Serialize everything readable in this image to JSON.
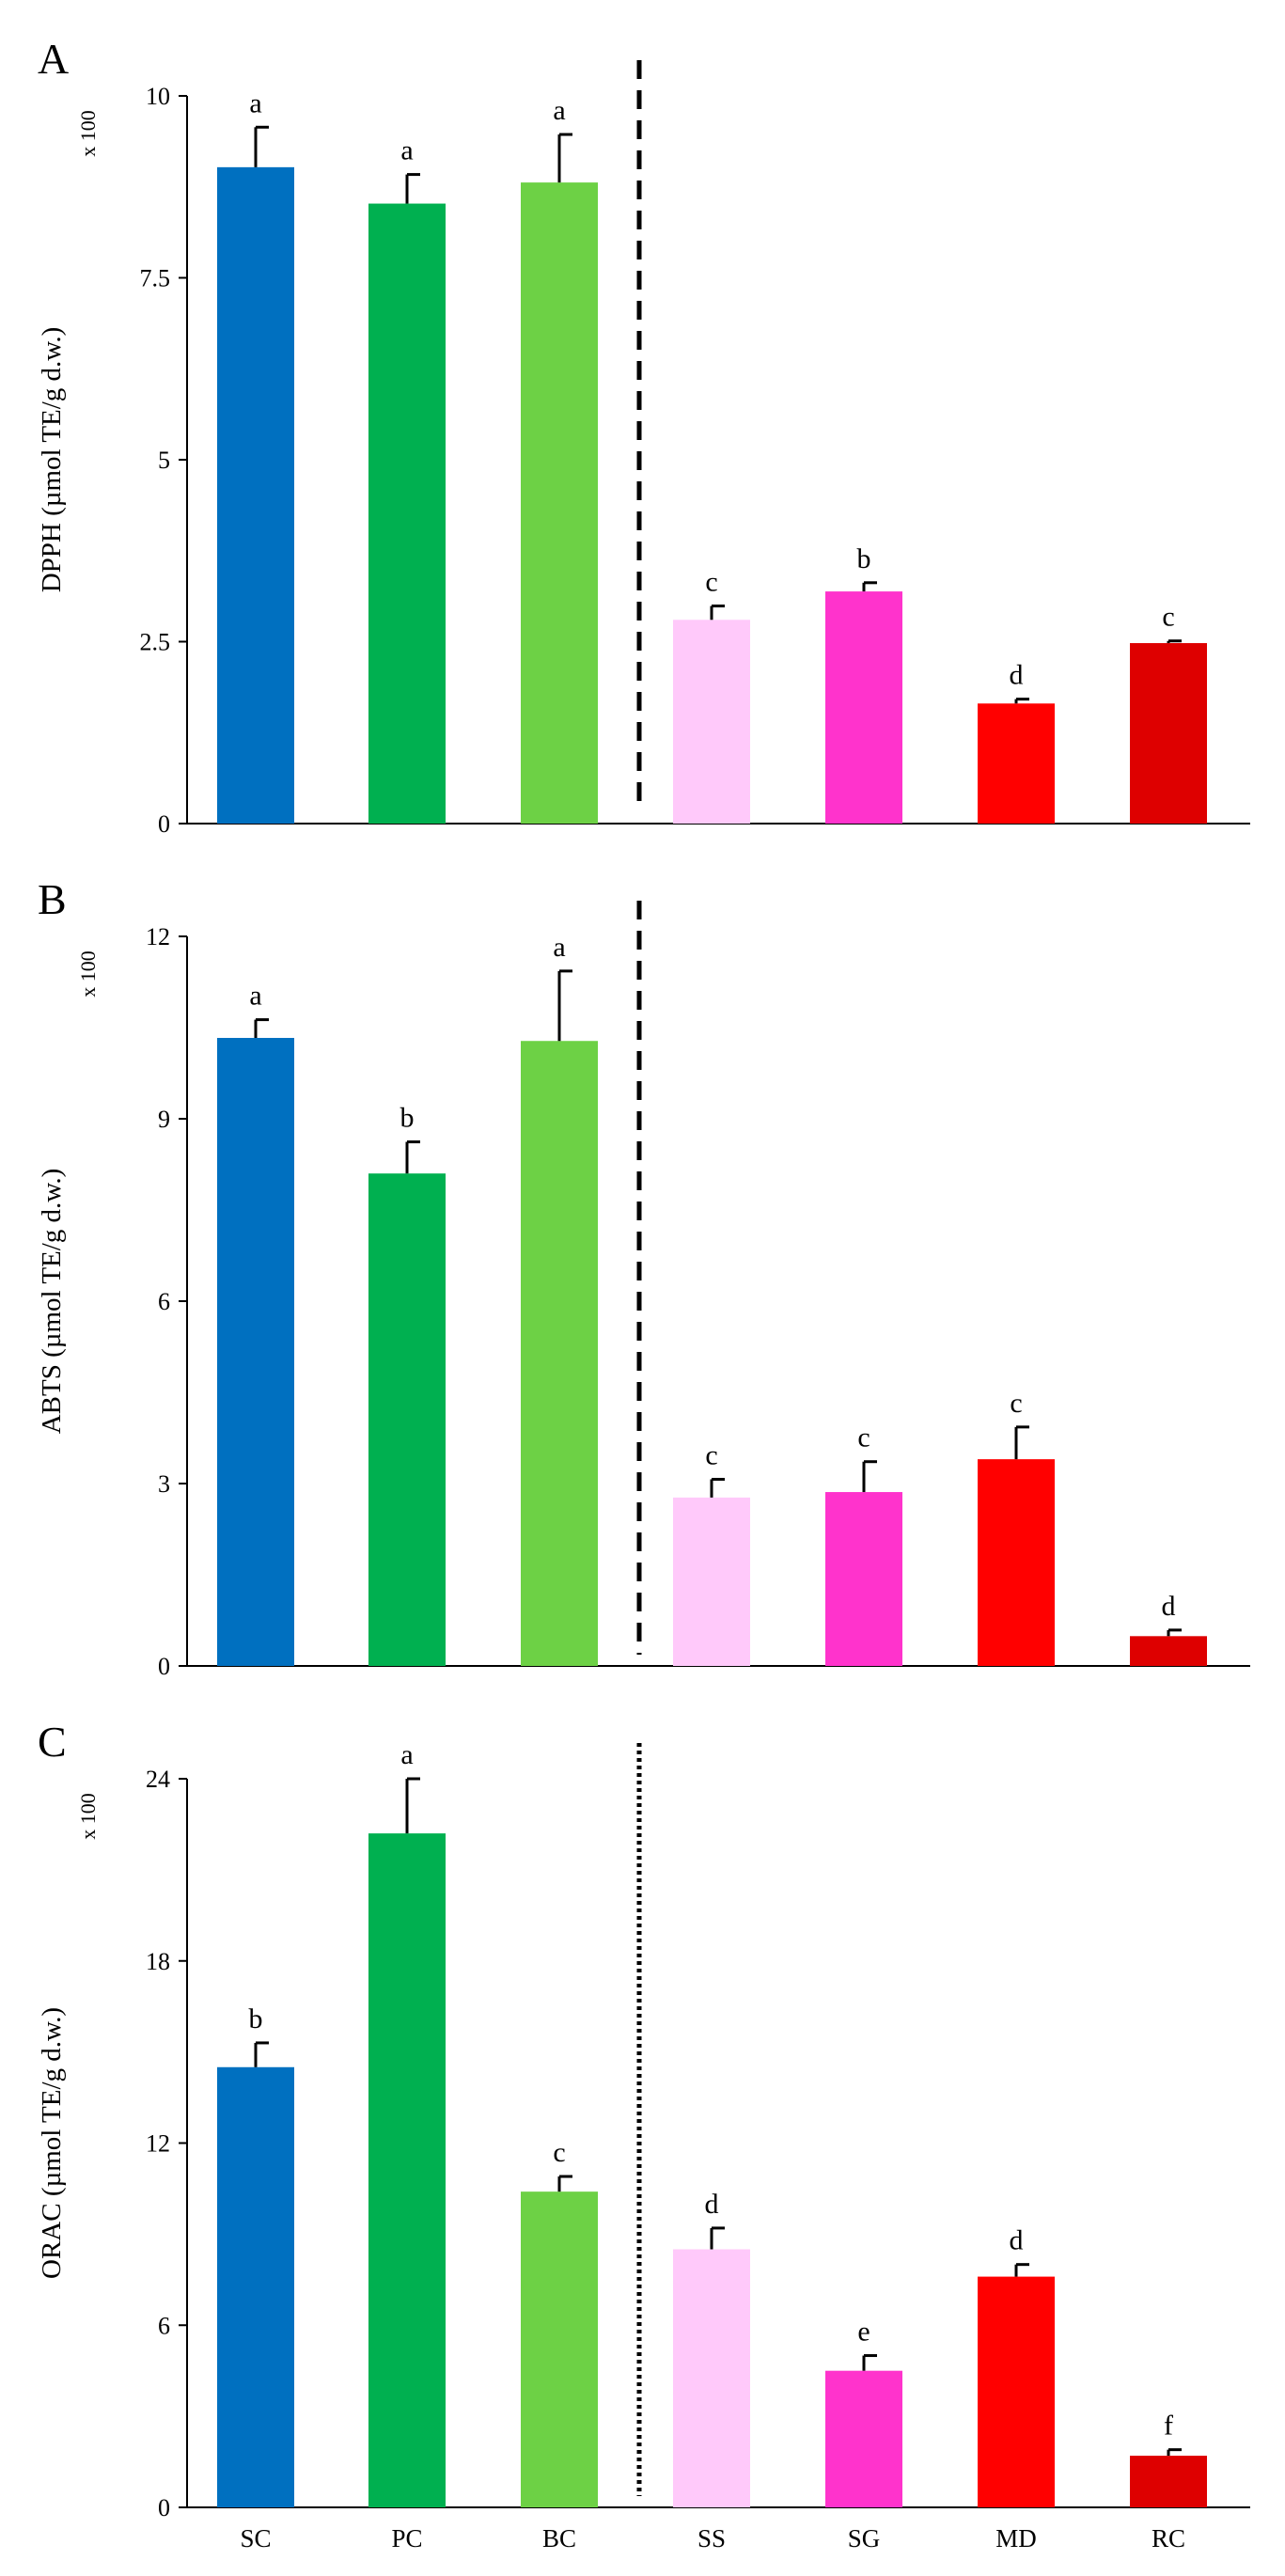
{
  "chart_data": [
    {
      "type": "bar",
      "panel_label": "A",
      "title": "",
      "ylabel": "DPPH (µmol TE/g d.w.)",
      "multiplier": "x 100",
      "ylim": [
        0,
        10
      ],
      "yticks": [
        0,
        2.5,
        5,
        7.5,
        10
      ],
      "ytick_labels": [
        "0",
        "2.5",
        "5",
        "7.5",
        "10"
      ],
      "categories": [
        "SC",
        "PC",
        "BC",
        "SS",
        "SG",
        "MD",
        "RC"
      ],
      "values": [
        9.02,
        8.52,
        8.81,
        2.8,
        3.19,
        1.65,
        2.48
      ],
      "errors": [
        0.55,
        0.4,
        0.66,
        0.19,
        0.12,
        0.06,
        0.03
      ],
      "letters": [
        "a",
        "a",
        "a",
        "c",
        "b",
        "d",
        "c"
      ],
      "colors": [
        "#0070C0",
        "#00B050",
        "#6DD145",
        "#FFC9FA",
        "#FF33CC",
        "#FF0000",
        "#DE0000"
      ],
      "separator_style": "dashed"
    },
    {
      "type": "bar",
      "panel_label": "B",
      "title": "",
      "ylabel": "ABTS (µmol TE/g d.w.)",
      "multiplier": "x 100",
      "ylim": [
        0,
        12
      ],
      "yticks": [
        0,
        3,
        6,
        9,
        12
      ],
      "ytick_labels": [
        "0",
        "3",
        "6",
        "9",
        "12"
      ],
      "categories": [
        "SC",
        "PC",
        "BC",
        "SS",
        "SG",
        "MD",
        "RC"
      ],
      "values": [
        10.33,
        8.1,
        10.28,
        2.77,
        2.86,
        3.4,
        0.49
      ],
      "errors": [
        0.3,
        0.52,
        1.15,
        0.3,
        0.5,
        0.53,
        0.1
      ],
      "letters": [
        "a",
        "b",
        "a",
        "c",
        "c",
        "c",
        "d"
      ],
      "colors": [
        "#0070C0",
        "#00B050",
        "#6DD145",
        "#FFC9FA",
        "#FF33CC",
        "#FF0000",
        "#DE0000"
      ],
      "separator_style": "dashed"
    },
    {
      "type": "bar",
      "panel_label": "C",
      "title": "",
      "ylabel": "ORAC (µmol TE/g d.w.)",
      "multiplier": "x 100",
      "ylim": [
        0,
        24
      ],
      "yticks": [
        0,
        6,
        12,
        18,
        24
      ],
      "ytick_labels": [
        "0",
        "6",
        "12",
        "18",
        "24"
      ],
      "categories": [
        "SC",
        "PC",
        "BC",
        "SS",
        "SG",
        "MD",
        "RC"
      ],
      "values": [
        14.5,
        22.2,
        10.4,
        8.5,
        4.5,
        7.6,
        1.7
      ],
      "errors": [
        0.8,
        1.8,
        0.5,
        0.7,
        0.5,
        0.4,
        0.2
      ],
      "letters": [
        "b",
        "a",
        "c",
        "d",
        "e",
        "d",
        "f"
      ],
      "colors": [
        "#0070C0",
        "#00B050",
        "#6DD145",
        "#FFC9FA",
        "#FF33CC",
        "#FF0000",
        "#DE0000"
      ],
      "separator_style": "dotted"
    }
  ]
}
